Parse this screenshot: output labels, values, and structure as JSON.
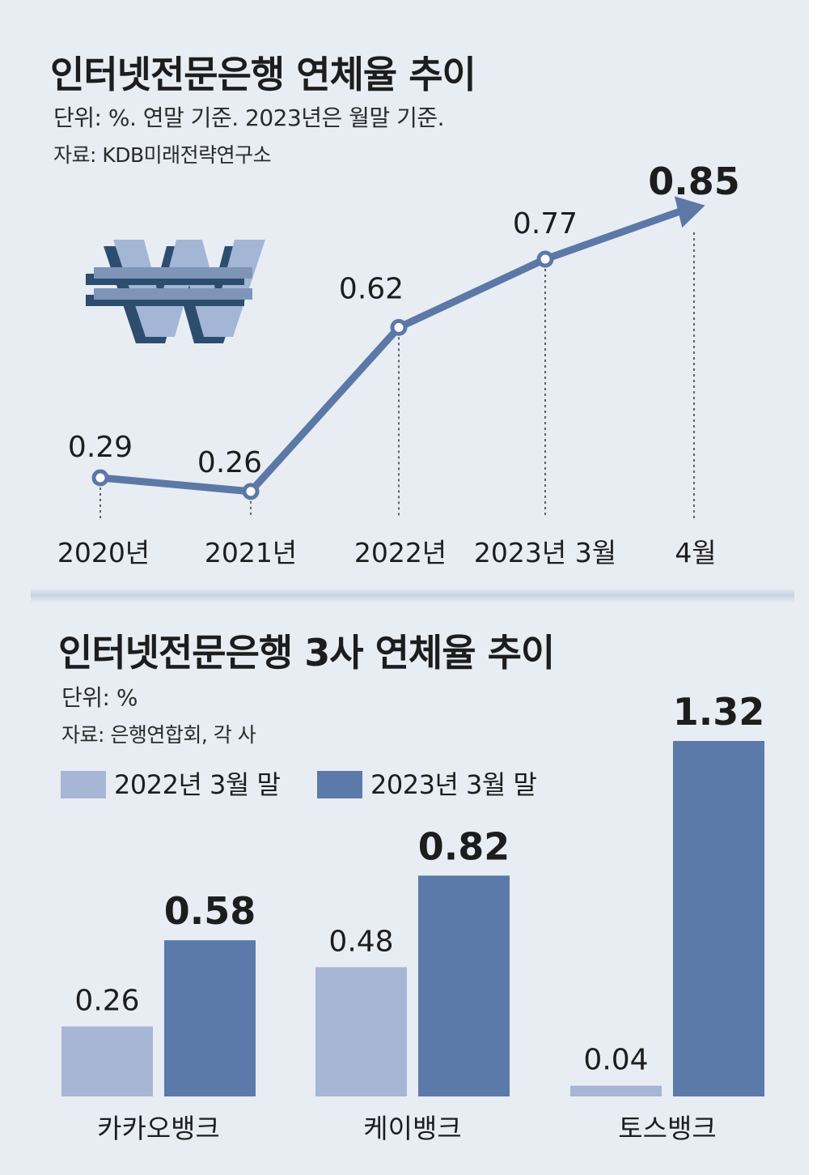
{
  "top": {
    "title": "인터넷전문은행 연체율 추이",
    "unit": "단위: %. 연말 기준. 2023년은 월말 기준.",
    "source": "자료: KDB미래전략연구소"
  },
  "bottom": {
    "title": "인터넷전문은행 3사 연체율 추이",
    "unit": "단위: %",
    "source": "자료: 은행연합회, 각 사",
    "legend": [
      "2022년 3월 말",
      "2023년 3월 말"
    ]
  },
  "colors": {
    "background": "#e8edf4",
    "line": "#5b78a6",
    "bar_2022": "#a6b6d4",
    "bar_2023": "#5b7aa9",
    "text": "#1d1d1d"
  },
  "icon": "won-currency-icon",
  "chart_data": [
    {
      "type": "line",
      "title": "인터넷전문은행 연체율 추이",
      "categories": [
        "2020년",
        "2021년",
        "2022년",
        "2023년 3월",
        "4월"
      ],
      "labels": [
        "0.29",
        "0.26",
        "0.62",
        "0.77",
        "0.85"
      ],
      "values": [
        0.29,
        0.26,
        0.62,
        0.77,
        0.85
      ],
      "highlight_last": true
    },
    {
      "type": "bar",
      "title": "인터넷전문은행 3사 연체율 추이",
      "categories": [
        "카카오뱅크",
        "케이뱅크",
        "토스뱅크"
      ],
      "series": [
        {
          "name": "2022년 3월 말",
          "values": [
            0.26,
            0.48,
            0.04
          ],
          "labels": [
            "0.26",
            "0.48",
            "0.04"
          ]
        },
        {
          "name": "2023년 3월 말",
          "values": [
            0.58,
            0.82,
            1.32
          ],
          "labels": [
            "0.58",
            "0.82",
            "1.32"
          ]
        }
      ]
    }
  ]
}
